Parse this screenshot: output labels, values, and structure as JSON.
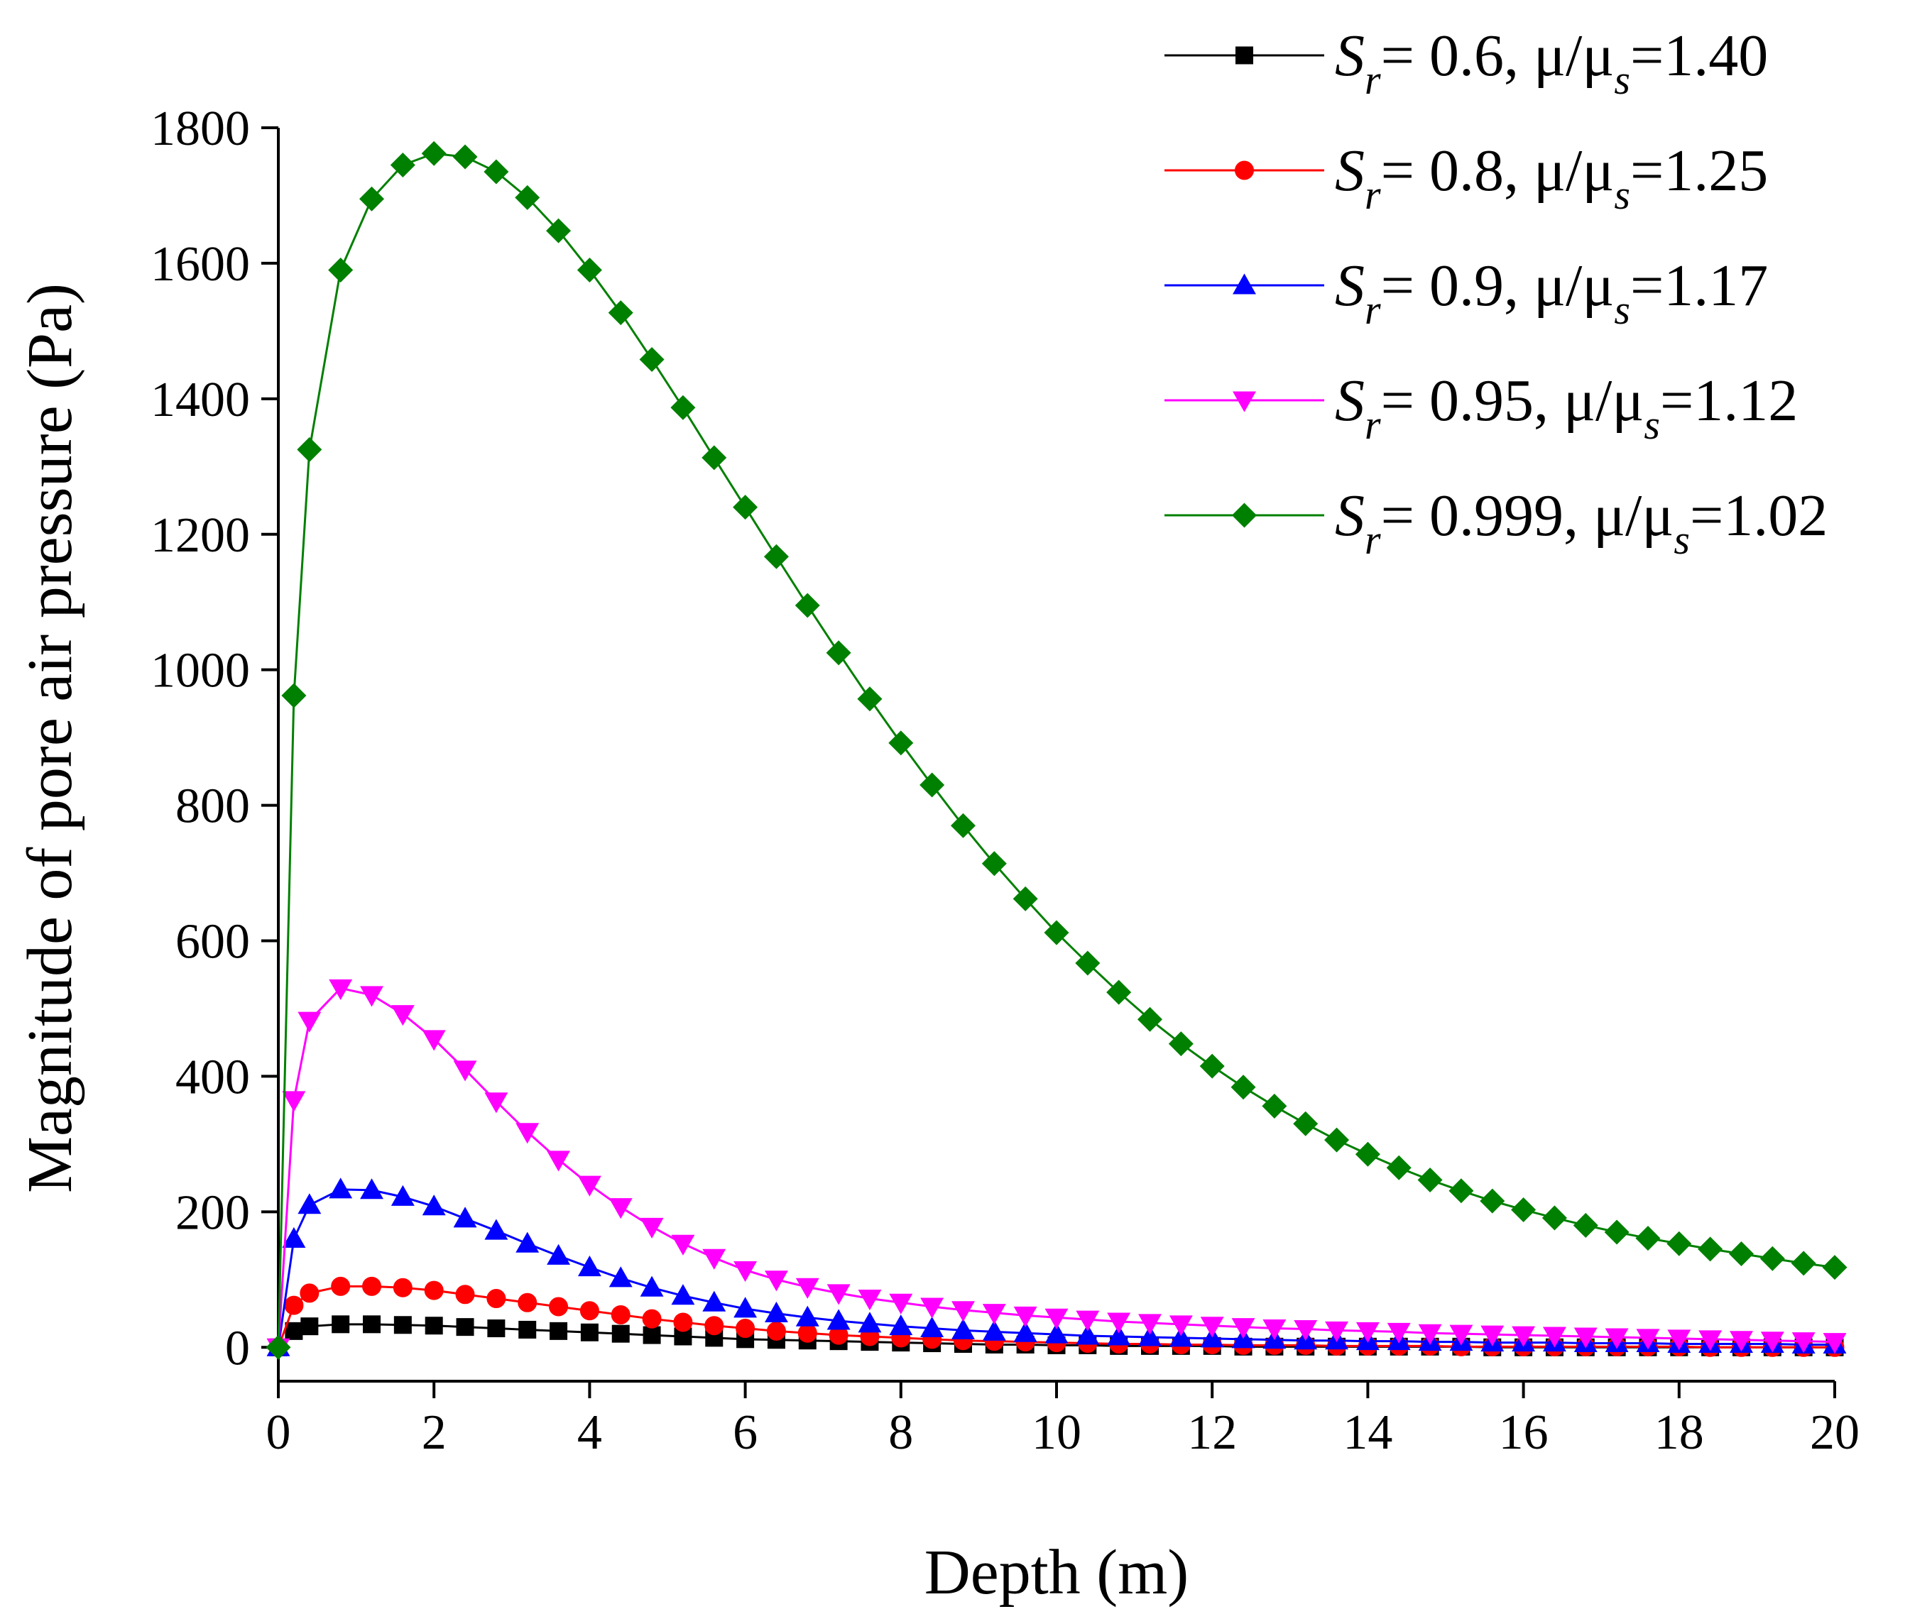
{
  "chart_data": {
    "type": "line",
    "xlabel": "Depth (m)",
    "ylabel": "Magnitude of pore air pressure (Pa)",
    "x": [
      0,
      0.2,
      0.4,
      0.8,
      1.2,
      1.6,
      2.0,
      2.4,
      2.8,
      3.2,
      3.6,
      4.0,
      4.4,
      4.8,
      5.2,
      5.6,
      6.0,
      6.4,
      6.8,
      7.2,
      7.6,
      8.0,
      8.4,
      8.8,
      9.2,
      9.6,
      10.0,
      10.4,
      10.8,
      11.2,
      11.6,
      12.0,
      12.4,
      12.8,
      13.2,
      13.6,
      14.0,
      14.4,
      14.8,
      15.2,
      15.6,
      16.0,
      16.4,
      16.8,
      17.2,
      17.6,
      18.0,
      18.4,
      18.8,
      19.2,
      19.6,
      20.0
    ],
    "series": [
      {
        "name": "Sr= 0.6, μ/μs=1.40",
        "color": "#000000",
        "marker": "square",
        "values": [
          0,
          24,
          31,
          34,
          34,
          33,
          32,
          30,
          28,
          26,
          24,
          22,
          20,
          18,
          16,
          14,
          12,
          11,
          10,
          9,
          8,
          7,
          6,
          5,
          4,
          4,
          3,
          3,
          2,
          2,
          2,
          2,
          1,
          1,
          1,
          1,
          1,
          1,
          1,
          1,
          0,
          0,
          0,
          0,
          0,
          0,
          0,
          0,
          0,
          0,
          0,
          0
        ]
      },
      {
        "name": "Sr= 0.8, μ/μs=1.25",
        "color": "#ff0000",
        "marker": "circle",
        "values": [
          0,
          62,
          80,
          90,
          90,
          88,
          84,
          78,
          72,
          66,
          60,
          54,
          48,
          42,
          37,
          32,
          28,
          24,
          21,
          18,
          16,
          14,
          12,
          10,
          9,
          8,
          7,
          6,
          5,
          5,
          4,
          4,
          3,
          3,
          3,
          2,
          2,
          2,
          2,
          1,
          1,
          1,
          1,
          1,
          1,
          1,
          1,
          0,
          0,
          0,
          0,
          0
        ]
      },
      {
        "name": "Sr= 0.9, μ/μs=1.17",
        "color": "#0000ff",
        "marker": "triangle-up",
        "values": [
          0,
          160,
          210,
          233,
          232,
          222,
          208,
          190,
          172,
          153,
          135,
          118,
          102,
          88,
          76,
          66,
          57,
          50,
          44,
          39,
          35,
          31,
          28,
          25,
          23,
          21,
          19,
          17,
          16,
          15,
          14,
          13,
          12,
          11,
          10,
          10,
          9,
          9,
          8,
          8,
          7,
          7,
          7,
          6,
          6,
          6,
          5,
          5,
          5,
          5,
          4,
          4
        ]
      },
      {
        "name": "Sr= 0.95, μ/μs=1.12",
        "color": "#ff00ff",
        "marker": "triangle-down",
        "values": [
          0,
          365,
          482,
          530,
          520,
          492,
          455,
          410,
          363,
          318,
          277,
          240,
          207,
          178,
          153,
          132,
          114,
          100,
          89,
          80,
          72,
          66,
          60,
          55,
          51,
          47,
          44,
          41,
          38,
          36,
          34,
          32,
          30,
          28,
          27,
          25,
          24,
          23,
          21,
          20,
          19,
          18,
          17,
          16,
          15,
          14,
          13,
          12,
          11,
          10,
          9,
          8
        ]
      },
      {
        "name": "Sr= 0.999, μ/μs=1.02",
        "color": "#008000",
        "marker": "diamond",
        "values": [
          0,
          962,
          1325,
          1590,
          1695,
          1745,
          1762,
          1757,
          1735,
          1697,
          1648,
          1590,
          1527,
          1458,
          1387,
          1313,
          1240,
          1167,
          1095,
          1025,
          957,
          892,
          830,
          770,
          714,
          662,
          612,
          567,
          524,
          484,
          448,
          415,
          384,
          356,
          330,
          306,
          285,
          265,
          247,
          231,
          216,
          203,
          191,
          180,
          170,
          161,
          153,
          145,
          138,
          131,
          124,
          118
        ]
      }
    ],
    "xlim": [
      0,
      20
    ],
    "xticks": [
      0,
      2,
      4,
      6,
      8,
      10,
      12,
      14,
      16,
      18,
      20
    ],
    "ylim": [
      -50,
      1800
    ],
    "yticks": [
      0,
      200,
      400,
      600,
      800,
      1000,
      1200,
      1400,
      1600,
      1800
    ],
    "legend": "top-right"
  }
}
